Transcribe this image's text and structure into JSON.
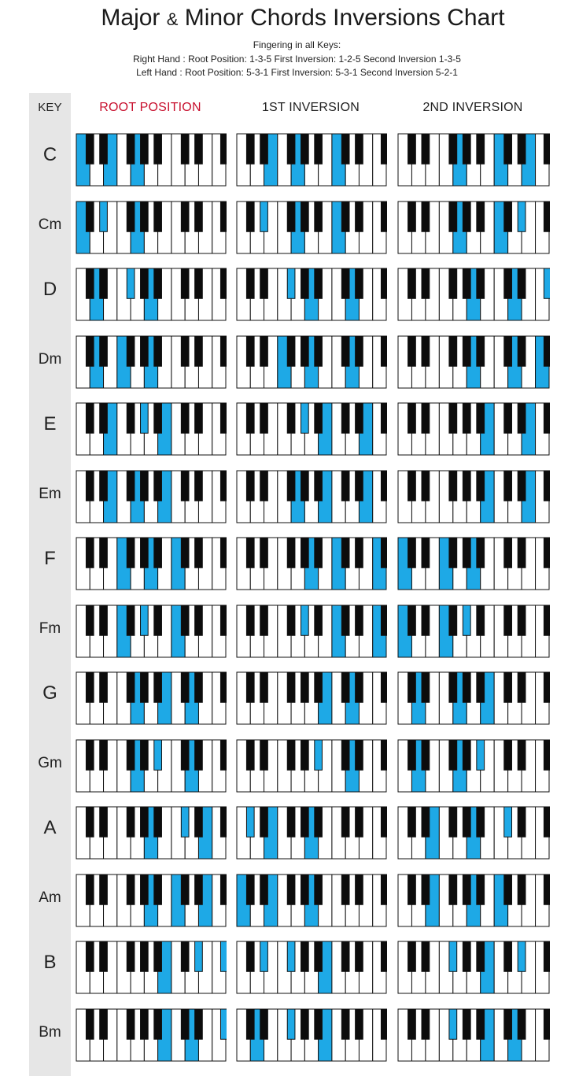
{
  "title": {
    "part1": "Major",
    "amp": "&",
    "part2": "Minor Chords Inversions Chart"
  },
  "subtitle": {
    "line1": "Fingering in all Keys:",
    "line2": "Right Hand : Root Position: 1-3-5 First Inversion: 1-2-5 Second Inversion 1-3-5",
    "line3": "Left Hand : Root Position: 5-3-1 First Inversion: 5-3-1 Second Inversion 5-2-1"
  },
  "columns": {
    "key": "KEY",
    "root": "ROOT POSITION",
    "first": "1ST INVERSION",
    "second": "2ND INVERSION"
  },
  "colors": {
    "highlight": "#1ea9e6",
    "root_heading": "#c8102e",
    "key_column": "#e6e6e6",
    "black_key": "#0c0c0c"
  },
  "keyboard": {
    "white_keys": 11,
    "start_note": "C",
    "black_key_pattern": "C# D# _ F# G# A# _ C# D# _ F# G#"
  },
  "chords": [
    {
      "key": "C",
      "root": [
        "C",
        "E",
        "G"
      ],
      "first": [
        "E",
        "G",
        "C"
      ],
      "second": [
        "G",
        "C",
        "E"
      ]
    },
    {
      "key": "Cm",
      "root": [
        "C",
        "Eb",
        "G"
      ],
      "first": [
        "Eb",
        "G",
        "C"
      ],
      "second": [
        "G",
        "C",
        "Eb"
      ]
    },
    {
      "key": "D",
      "root": [
        "D",
        "F#",
        "A"
      ],
      "first": [
        "F#",
        "A",
        "D"
      ],
      "second": [
        "A",
        "D",
        "F#"
      ]
    },
    {
      "key": "Dm",
      "root": [
        "D",
        "F",
        "A"
      ],
      "first": [
        "F",
        "A",
        "D"
      ],
      "second": [
        "A",
        "D",
        "F"
      ]
    },
    {
      "key": "E",
      "root": [
        "E",
        "G#",
        "B"
      ],
      "first": [
        "G#",
        "B",
        "E"
      ],
      "second": [
        "B",
        "E",
        "G#"
      ]
    },
    {
      "key": "Em",
      "root": [
        "E",
        "G",
        "B"
      ],
      "first": [
        "G",
        "B",
        "E"
      ],
      "second": [
        "B",
        "E",
        "G"
      ]
    },
    {
      "key": "F",
      "root": [
        "F",
        "A",
        "C"
      ],
      "first": [
        "A",
        "C",
        "F"
      ],
      "second": [
        "C",
        "F",
        "A"
      ]
    },
    {
      "key": "Fm",
      "root": [
        "F",
        "Ab",
        "C"
      ],
      "first": [
        "Ab",
        "C",
        "F"
      ],
      "second": [
        "C",
        "F",
        "Ab"
      ]
    },
    {
      "key": "G",
      "root": [
        "G",
        "B",
        "D"
      ],
      "first": [
        "B",
        "D",
        "G"
      ],
      "second": [
        "D",
        "G",
        "B"
      ]
    },
    {
      "key": "Gm",
      "root": [
        "G",
        "Bb",
        "D"
      ],
      "first": [
        "Bb",
        "D",
        "G"
      ],
      "second": [
        "D",
        "G",
        "Bb"
      ]
    },
    {
      "key": "A",
      "root": [
        "A",
        "C#",
        "E"
      ],
      "first": [
        "C#",
        "E",
        "A"
      ],
      "second": [
        "E",
        "A",
        "C#"
      ]
    },
    {
      "key": "Am",
      "root": [
        "A",
        "C",
        "E"
      ],
      "first": [
        "C",
        "E",
        "A"
      ],
      "second": [
        "E",
        "A",
        "C"
      ]
    },
    {
      "key": "B",
      "root": [
        "B",
        "D#",
        "F#"
      ],
      "first": [
        "D#",
        "F#",
        "B"
      ],
      "second": [
        "F#",
        "B",
        "D#"
      ]
    },
    {
      "key": "Bm",
      "root": [
        "B",
        "D",
        "F#"
      ],
      "first": [
        "D",
        "F#",
        "B"
      ],
      "second": [
        "F#",
        "B",
        "D"
      ]
    }
  ]
}
